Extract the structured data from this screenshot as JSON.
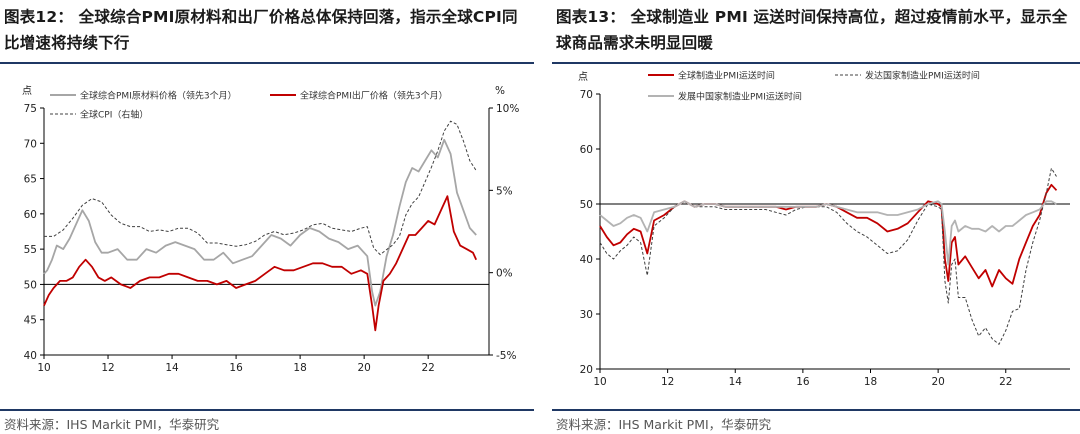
{
  "left": {
    "title": "图表12： 全球综合PMI原材料和出厂价格总体保持回落，指示全球CPI同比增速将持续下行",
    "source": "资料来源：IHS Markit PMI，华泰研究",
    "chart_data": {
      "type": "line",
      "y_unit_left": "点",
      "y_unit_right": "%",
      "ylim": [
        40,
        75
      ],
      "y_ticks": [
        40,
        45,
        50,
        55,
        60,
        65,
        70,
        75
      ],
      "y2lim": [
        -5,
        10
      ],
      "y2_ticks": [
        "-5%",
        "0%",
        "5%",
        "10%"
      ],
      "y2_tick_values": [
        -5,
        0,
        5,
        10
      ],
      "xlim": [
        2010,
        2023.9
      ],
      "x_ticks": [
        "10",
        "12",
        "14",
        "16",
        "18",
        "20",
        "22"
      ],
      "x_tick_values": [
        2010,
        2012,
        2014,
        2016,
        2018,
        2020,
        2022
      ],
      "reference_line": 50,
      "legend": [
        "全球综合PMI原材料价格（领先3个月）",
        "全球综合PMI出厂价格（领先3个月）",
        "全球CPI（右轴）"
      ],
      "series": [
        {
          "name": "全球综合PMI原材料价格（领先3个月）",
          "color": "#a6a6a6",
          "axis": "left",
          "x": [
            2010,
            2010.1,
            2010.25,
            2010.4,
            2010.6,
            2010.8,
            2011.0,
            2011.2,
            2011.4,
            2011.6,
            2011.8,
            2012.0,
            2012.3,
            2012.6,
            2012.9,
            2013.2,
            2013.5,
            2013.8,
            2014.1,
            2014.4,
            2014.7,
            2015.0,
            2015.3,
            2015.6,
            2015.9,
            2016.2,
            2016.5,
            2016.8,
            2017.1,
            2017.4,
            2017.7,
            2018.0,
            2018.3,
            2018.6,
            2018.9,
            2019.2,
            2019.5,
            2019.8,
            2020.1,
            2020.25,
            2020.35,
            2020.5,
            2020.7,
            2020.9,
            2021.1,
            2021.3,
            2021.5,
            2021.7,
            2021.9,
            2022.1,
            2022.3,
            2022.5,
            2022.7,
            2022.9,
            2023.1,
            2023.3,
            2023.5
          ],
          "values": [
            51.5,
            52,
            53.5,
            55.5,
            55,
            56.5,
            58.5,
            60.5,
            59,
            56,
            54.5,
            54.5,
            55,
            53.5,
            53.5,
            55,
            54.5,
            55.5,
            56,
            55.5,
            55,
            53.5,
            53.5,
            54.5,
            53,
            53.5,
            54,
            55.5,
            57,
            56.5,
            55.5,
            57,
            58,
            57.5,
            56.5,
            56,
            55,
            55.5,
            54,
            49,
            47,
            49,
            54,
            57,
            61,
            64.5,
            66.5,
            66,
            67.5,
            69,
            68,
            70.5,
            68.5,
            63,
            60.5,
            58,
            57
          ]
        },
        {
          "name": "全球综合PMI出厂价格（领先3个月）",
          "color": "#c00000",
          "axis": "left",
          "x": [
            2010,
            2010.15,
            2010.3,
            2010.5,
            2010.7,
            2010.9,
            2011.1,
            2011.3,
            2011.5,
            2011.7,
            2011.9,
            2012.1,
            2012.4,
            2012.7,
            2013.0,
            2013.3,
            2013.6,
            2013.9,
            2014.2,
            2014.5,
            2014.8,
            2015.1,
            2015.4,
            2015.7,
            2016.0,
            2016.3,
            2016.6,
            2016.9,
            2017.2,
            2017.5,
            2017.8,
            2018.1,
            2018.4,
            2018.7,
            2019.0,
            2019.3,
            2019.6,
            2019.9,
            2020.1,
            2020.25,
            2020.35,
            2020.45,
            2020.6,
            2020.8,
            2021.0,
            2021.2,
            2021.4,
            2021.6,
            2021.8,
            2022.0,
            2022.2,
            2022.4,
            2022.6,
            2022.8,
            2023.0,
            2023.2,
            2023.4,
            2023.5
          ],
          "values": [
            47,
            48.5,
            49.5,
            50.5,
            50.5,
            51,
            52.5,
            53.5,
            52.5,
            51,
            50.5,
            51,
            50,
            49.5,
            50.5,
            51,
            51,
            51.5,
            51.5,
            51,
            50.5,
            50.5,
            50,
            50.5,
            49.5,
            50,
            50.5,
            51.5,
            52.5,
            52,
            52,
            52.5,
            53,
            53,
            52.5,
            52.5,
            51.5,
            52,
            51.5,
            47,
            43.5,
            47,
            50.5,
            51.5,
            53,
            55,
            57,
            57,
            58,
            59,
            58.5,
            60.5,
            62.5,
            57.5,
            55.5,
            55,
            54.5,
            53.5
          ]
        },
        {
          "name": "全球CPI（右轴）",
          "color": "#404040",
          "axis": "right",
          "dashed": true,
          "x": [
            2010,
            2010.3,
            2010.6,
            2010.9,
            2011.2,
            2011.5,
            2011.8,
            2012.1,
            2012.4,
            2012.7,
            2013.0,
            2013.3,
            2013.6,
            2013.9,
            2014.2,
            2014.5,
            2014.8,
            2015.1,
            2015.4,
            2015.7,
            2016.0,
            2016.3,
            2016.6,
            2016.9,
            2017.2,
            2017.5,
            2017.8,
            2018.1,
            2018.4,
            2018.7,
            2019.0,
            2019.3,
            2019.6,
            2019.9,
            2020.1,
            2020.3,
            2020.5,
            2020.7,
            2020.9,
            2021.1,
            2021.3,
            2021.5,
            2021.7,
            2021.9,
            2022.1,
            2022.3,
            2022.5,
            2022.7,
            2022.9,
            2023.1,
            2023.3,
            2023.5
          ],
          "values": [
            2.2,
            2.2,
            2.6,
            3.3,
            4.1,
            4.5,
            4.3,
            3.5,
            3.0,
            2.8,
            2.8,
            2.5,
            2.6,
            2.5,
            2.7,
            2.7,
            2.4,
            1.8,
            1.8,
            1.7,
            1.6,
            1.7,
            1.9,
            2.3,
            2.5,
            2.3,
            2.4,
            2.6,
            2.9,
            3.0,
            2.7,
            2.6,
            2.5,
            2.7,
            2.8,
            1.5,
            1.1,
            1.4,
            1.7,
            2.2,
            3.5,
            4.2,
            4.6,
            5.5,
            6.4,
            7.4,
            8.6,
            9.2,
            9.0,
            8.0,
            6.8,
            6.2
          ]
        }
      ]
    }
  },
  "right": {
    "title": "图表13： 全球制造业 PMI 运送时间保持高位，超过疫情前水平，显示全球商品需求未明显回暖",
    "source": "资料来源：IHS Markit PMI，华泰研究",
    "chart_data": {
      "type": "line",
      "y_unit_left": "点",
      "ylim": [
        20,
        70
      ],
      "y_ticks": [
        20,
        30,
        40,
        50,
        60,
        70
      ],
      "xlim": [
        2010,
        2023.9
      ],
      "x_ticks": [
        "10",
        "12",
        "14",
        "16",
        "18",
        "20",
        "22"
      ],
      "x_tick_values": [
        2010,
        2012,
        2014,
        2016,
        2018,
        2020,
        2022
      ],
      "reference_line": 50,
      "legend": [
        "全球制造业PMI运送时间",
        "发达国家制造业PMI运送时间",
        "发展中国家制造业PMI运送时间"
      ],
      "series": [
        {
          "name": "全球制造业PMI运送时间",
          "color": "#c00000",
          "x": [
            2010,
            2010.2,
            2010.4,
            2010.6,
            2010.8,
            2011.0,
            2011.2,
            2011.4,
            2011.6,
            2011.9,
            2012.2,
            2012.5,
            2012.8,
            2013.1,
            2013.4,
            2013.7,
            2014.0,
            2014.3,
            2014.6,
            2014.9,
            2015.2,
            2015.5,
            2015.8,
            2016.1,
            2016.4,
            2016.7,
            2017.0,
            2017.3,
            2017.6,
            2017.9,
            2018.2,
            2018.5,
            2018.8,
            2019.1,
            2019.4,
            2019.7,
            2020.0,
            2020.1,
            2020.2,
            2020.3,
            2020.4,
            2020.5,
            2020.6,
            2020.8,
            2021.0,
            2021.2,
            2021.4,
            2021.6,
            2021.8,
            2022.0,
            2022.2,
            2022.4,
            2022.6,
            2022.8,
            2023.0,
            2023.2,
            2023.35,
            2023.5
          ],
          "values": [
            46,
            44,
            42.5,
            43,
            44.5,
            45.5,
            45,
            41,
            47,
            48,
            49.5,
            50.5,
            49.5,
            50,
            50,
            49.5,
            49.5,
            49.5,
            49.5,
            49.5,
            49.5,
            49,
            49.5,
            49.5,
            49.5,
            50,
            49.5,
            48.5,
            47.5,
            47.5,
            46.5,
            45,
            45.5,
            46.5,
            48.5,
            50.5,
            50,
            49.5,
            40,
            36,
            43,
            44,
            39,
            40.5,
            38.5,
            36.5,
            38,
            35,
            38,
            36.5,
            35.5,
            40,
            43,
            46,
            48,
            52,
            53.5,
            52.5
          ]
        },
        {
          "name": "发达国家制造业PMI运送时间",
          "color": "#404040",
          "dashed": true,
          "x": [
            2010,
            2010.2,
            2010.4,
            2010.6,
            2010.8,
            2011.0,
            2011.2,
            2011.4,
            2011.6,
            2011.9,
            2012.2,
            2012.5,
            2012.8,
            2013.1,
            2013.4,
            2013.7,
            2014.0,
            2014.3,
            2014.6,
            2014.9,
            2015.2,
            2015.5,
            2015.8,
            2016.1,
            2016.4,
            2016.7,
            2017.0,
            2017.3,
            2017.6,
            2017.9,
            2018.2,
            2018.5,
            2018.8,
            2019.1,
            2019.4,
            2019.7,
            2020.0,
            2020.1,
            2020.2,
            2020.3,
            2020.4,
            2020.5,
            2020.6,
            2020.8,
            2021.0,
            2021.2,
            2021.4,
            2021.6,
            2021.8,
            2022.0,
            2022.2,
            2022.4,
            2022.6,
            2022.8,
            2023.0,
            2023.2,
            2023.35,
            2023.5
          ],
          "values": [
            43,
            41,
            40,
            41.5,
            42.5,
            44,
            43,
            37,
            46,
            47.5,
            49.5,
            50.5,
            49.5,
            49.5,
            49.5,
            49,
            49,
            49,
            49,
            49,
            48.5,
            48,
            49,
            49.5,
            49.5,
            49.5,
            48.5,
            46.5,
            45,
            44,
            42.5,
            41,
            41.5,
            43.5,
            47,
            50,
            49.5,
            49,
            36,
            32,
            39,
            40,
            33,
            33,
            29,
            26,
            27.5,
            25.5,
            24.5,
            27,
            30.5,
            31,
            38,
            43,
            47,
            52,
            56.5,
            55
          ]
        },
        {
          "name": "发展中国家制造业PMI运送时间",
          "color": "#b3b3b3",
          "x": [
            2010,
            2010.2,
            2010.4,
            2010.6,
            2010.8,
            2011.0,
            2011.2,
            2011.4,
            2011.6,
            2011.9,
            2012.2,
            2012.5,
            2012.8,
            2013.1,
            2013.4,
            2013.7,
            2014.0,
            2014.3,
            2014.6,
            2014.9,
            2015.2,
            2015.5,
            2015.8,
            2016.1,
            2016.4,
            2016.7,
            2017.0,
            2017.3,
            2017.6,
            2017.9,
            2018.2,
            2018.5,
            2018.8,
            2019.1,
            2019.4,
            2019.7,
            2020.0,
            2020.1,
            2020.2,
            2020.3,
            2020.4,
            2020.5,
            2020.6,
            2020.8,
            2021.0,
            2021.2,
            2021.4,
            2021.6,
            2021.8,
            2022.0,
            2022.2,
            2022.4,
            2022.6,
            2022.8,
            2023.0,
            2023.2,
            2023.35,
            2023.5
          ],
          "values": [
            48,
            47,
            46,
            46.5,
            47.5,
            48,
            47.5,
            45,
            48.5,
            49,
            49.5,
            50.5,
            49.5,
            50,
            50,
            49.5,
            49.5,
            49.5,
            49.5,
            49.5,
            49.5,
            49.5,
            49.5,
            49.5,
            49.5,
            50,
            49.5,
            49,
            48.5,
            48.5,
            48.5,
            48,
            48,
            48.5,
            49,
            50,
            50.5,
            50,
            45,
            39,
            46,
            47,
            45,
            46,
            45.5,
            45.5,
            45,
            46,
            45,
            46,
            46,
            47,
            48,
            48.5,
            49,
            50.5,
            50.5,
            50
          ]
        }
      ]
    }
  }
}
